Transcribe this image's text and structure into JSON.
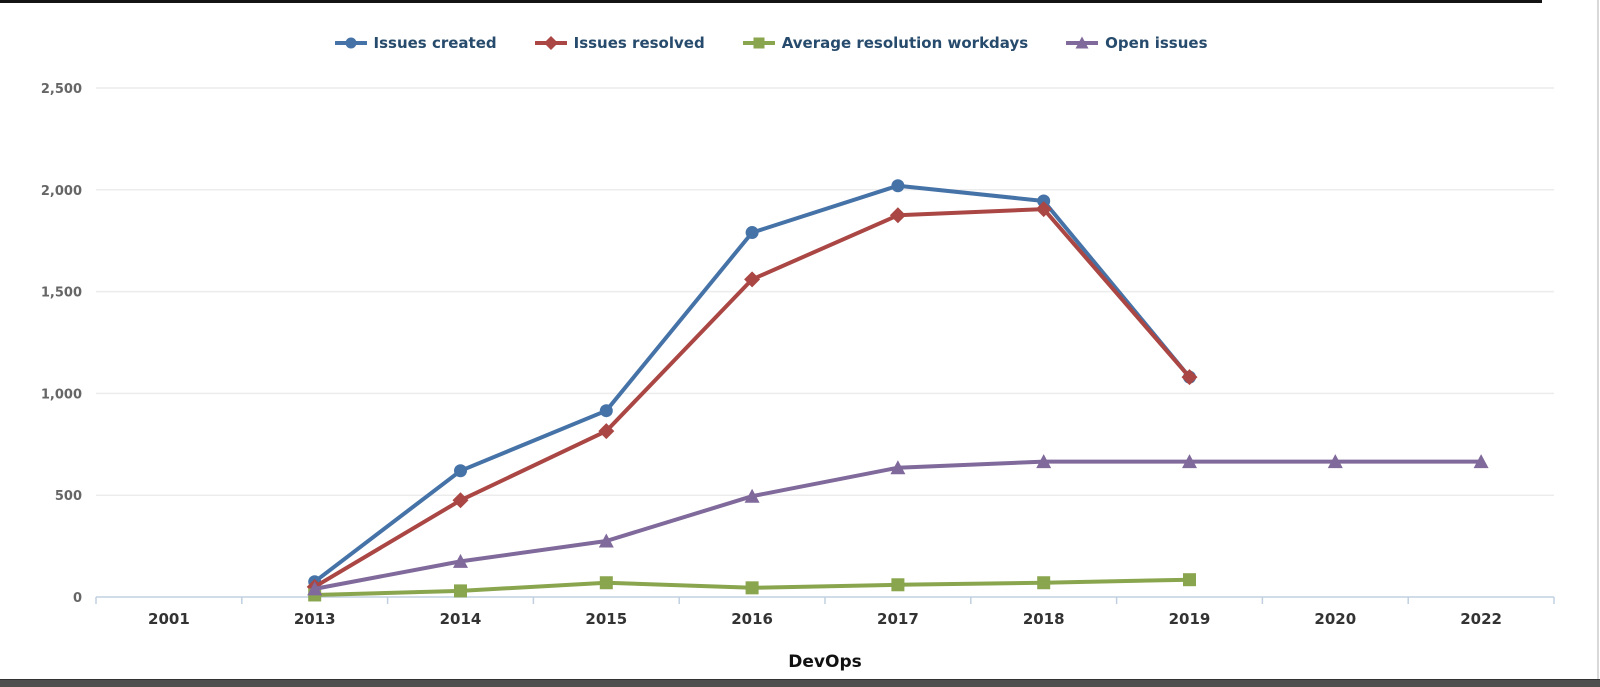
{
  "chart_data": {
    "type": "line",
    "title": "",
    "xlabel": "DevOps",
    "ylabel": "",
    "categories": [
      "2001",
      "2013",
      "2014",
      "2015",
      "2016",
      "2017",
      "2018",
      "2019",
      "2020",
      "2022"
    ],
    "series": [
      {
        "name": "Issues created",
        "color": "#4572A7",
        "marker": "circle",
        "values": [
          null,
          75,
          620,
          915,
          1790,
          2020,
          1945,
          1080,
          null,
          null
        ]
      },
      {
        "name": "Issues resolved",
        "color": "#AA4643",
        "marker": "diamond",
        "values": [
          null,
          50,
          475,
          815,
          1560,
          1875,
          1905,
          1080,
          null,
          null
        ]
      },
      {
        "name": "Average resolution workdays",
        "color": "#89A54E",
        "marker": "square",
        "values": [
          null,
          10,
          30,
          70,
          45,
          60,
          70,
          85,
          null,
          null
        ]
      },
      {
        "name": "Open issues",
        "color": "#80699B",
        "marker": "triangle",
        "values": [
          null,
          40,
          175,
          275,
          495,
          635,
          665,
          665,
          665,
          665
        ]
      }
    ],
    "ylim": [
      0,
      2500
    ],
    "ytick_interval": 500,
    "ytick_labels": [
      "0",
      "500",
      "1,000",
      "1,500",
      "2,000",
      "2,500"
    ],
    "grid": true,
    "legend_position": "top"
  },
  "colors": {
    "gridline": "#ececec",
    "axis_line": "#c0d0e0",
    "legend_text": "#274b6d",
    "xtick_text": "#333333",
    "ytick_text": "#666666",
    "xaxis_title_text": "#111111"
  }
}
